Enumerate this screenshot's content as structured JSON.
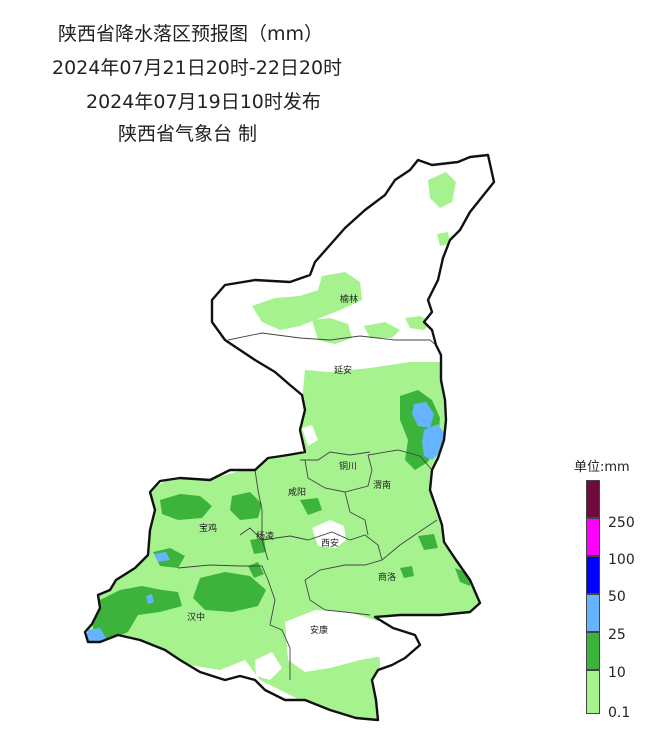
{
  "title": {
    "line1": "陕西省降水落区预报图（mm）",
    "line2": "2024年07月21日20时-22日20时",
    "line3": "2024年07月19日10时发布",
    "line4": "陕西省气象台 制"
  },
  "cities": [
    "榆林",
    "延安",
    "铜川",
    "渭南",
    "咸阳",
    "宝鸡",
    "杨凌",
    "西安",
    "商洛",
    "汉中",
    "安康"
  ],
  "legend": {
    "title": "单位:mm",
    "labels": [
      "250",
      "100",
      "50",
      "25",
      "10",
      "0.1"
    ],
    "colors": [
      "#6e0a3c",
      "#ff00ff",
      "#0000ff",
      "#66b3ff",
      "#3cb43c",
      "#a6f28f"
    ]
  },
  "colors": {
    "light_green": "#a6f28f",
    "green": "#3cb43c",
    "light_blue": "#66b3ff"
  }
}
